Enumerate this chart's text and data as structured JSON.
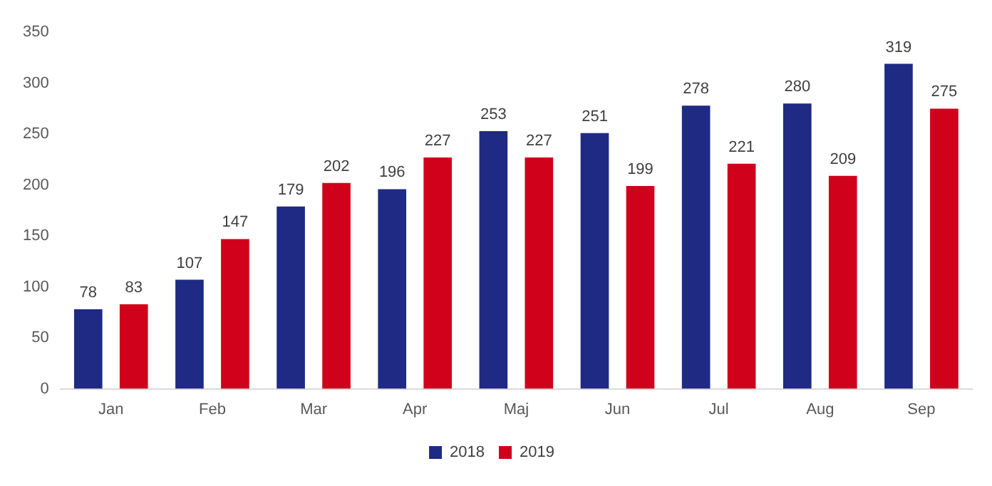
{
  "chart_data": {
    "type": "bar",
    "categories": [
      "Jan",
      "Feb",
      "Mar",
      "Apr",
      "Maj",
      "Jun",
      "Jul",
      "Aug",
      "Sep"
    ],
    "series": [
      {
        "name": "2018",
        "color": "#1f2a84",
        "values": [
          78,
          107,
          179,
          196,
          253,
          251,
          278,
          280,
          319
        ]
      },
      {
        "name": "2019",
        "color": "#d0021b",
        "values": [
          83,
          147,
          202,
          227,
          227,
          199,
          221,
          209,
          275
        ]
      }
    ],
    "ylim": [
      0,
      350
    ],
    "yticks": [
      0,
      50,
      100,
      150,
      200,
      250,
      300,
      350
    ],
    "grid": false,
    "legend": "bottom",
    "data_labels": true
  }
}
